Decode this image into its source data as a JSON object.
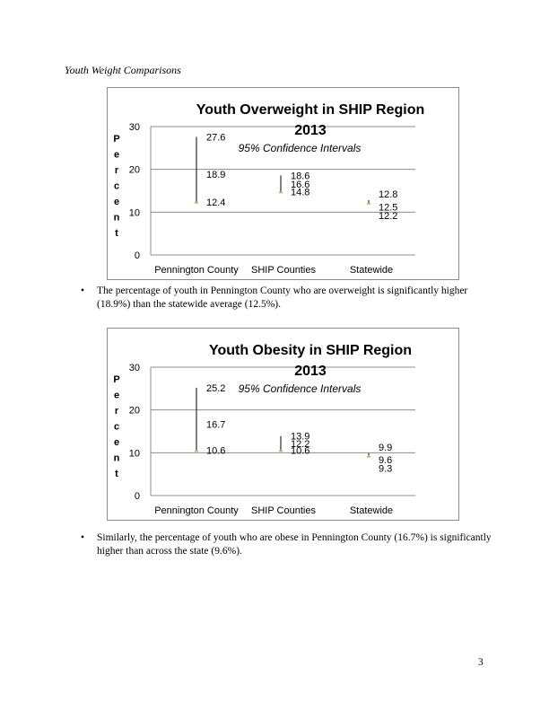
{
  "page": {
    "heading": "Youth Weight Comparisons",
    "page_number": "3",
    "bullet_char": "•",
    "bullets": [
      "The percentage of youth in Pennington County who are overweight is significantly higher (18.9%) than the statewide average (12.5%).",
      "Similarly, the percentage of youth who are obese in Pennington County (16.7%) is significantly higher than across the state (9.6%)."
    ]
  },
  "chart_data": [
    {
      "type": "error-bar",
      "title_line1": "Youth Overweight in SHIP Region",
      "title_line2": "2013",
      "subtitle": "95% Confidence Intervals",
      "ylabel": "Percent",
      "xlabel": "",
      "categories": [
        "Pennington County",
        "SHIP Counties",
        "Statewide"
      ],
      "estimate": [
        18.9,
        16.6,
        12.5
      ],
      "upper": [
        27.6,
        18.6,
        12.8
      ],
      "lower": [
        12.4,
        14.8,
        12.2
      ],
      "ylim": [
        0,
        30
      ],
      "yticks": [
        0,
        10,
        20,
        30
      ],
      "grid": true,
      "colors": {
        "range": "#000000",
        "estimate": "#9bbb59",
        "grid": "#8c8c8c"
      }
    },
    {
      "type": "error-bar",
      "title_line1": "Youth Obesity in SHIP Region",
      "title_line2": "2013",
      "subtitle": "95% Confidence Intervals",
      "ylabel": "Percent",
      "xlabel": "",
      "categories": [
        "Pennington County",
        "SHIP Counties",
        "Statewide"
      ],
      "estimate": [
        16.7,
        12.2,
        9.6
      ],
      "upper": [
        25.2,
        13.9,
        9.9
      ],
      "lower": [
        10.6,
        10.6,
        9.3
      ],
      "ylim": [
        0,
        30
      ],
      "yticks": [
        0,
        10,
        20,
        30
      ],
      "grid": true,
      "colors": {
        "range": "#000000",
        "estimate": "#9bbb59",
        "grid": "#8c8c8c"
      }
    }
  ]
}
